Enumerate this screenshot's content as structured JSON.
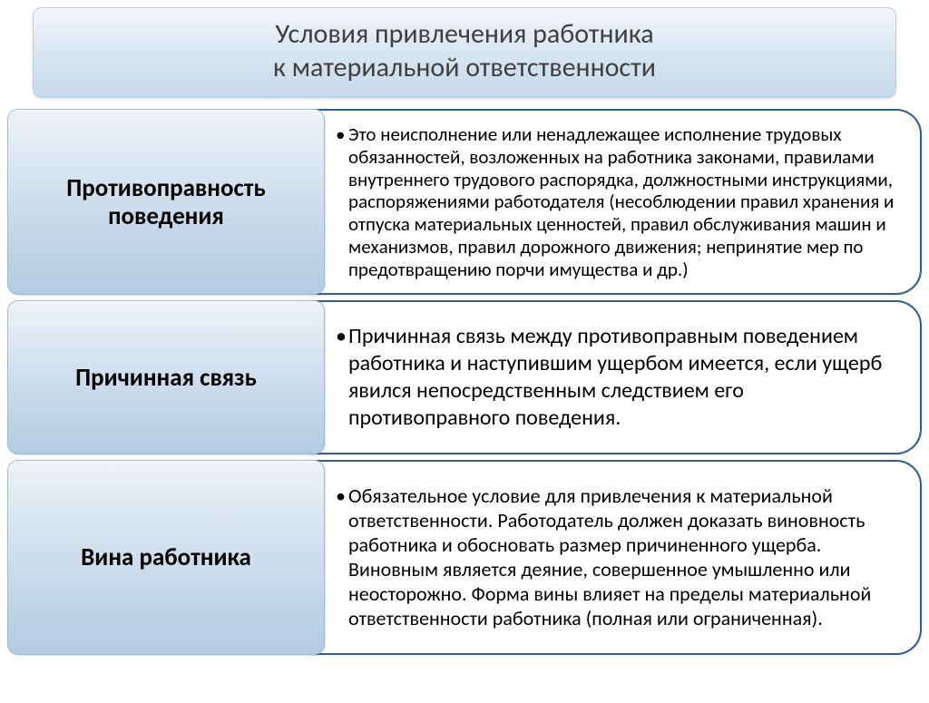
{
  "title": {
    "line1": "Условия привлечения работника",
    "line2": "к материальной ответственности"
  },
  "items": [
    {
      "label": "Противоправность поведения",
      "text": "Это неисполнение или ненадлежащее исполнение трудовых обязанностей, возложенных на работника законами, правилами внутреннего трудового распорядка, должностными инструкциями, распоряжениями работодателя (несоблюдении правил хранения и отпуска материальных ценностей, правил обслуживания машин и механизмов, правил дорожного движения; непринятие мер по предотвращению порчи имущества и др.)"
    },
    {
      "label": "Причинная связь",
      "text": "Причинная связь между противоправным поведением работника и наступившим ущербом имеется, если ущерб явился непосредственным следствием его противоправного поведения."
    },
    {
      "label": "Вина работника",
      "text": "Обязательное условие для привлечения к материальной ответственности. Работодатель должен доказать виновность работника и обосновать размер причиненного ущерба. Виновным является деяние, совершенное умышленно или неосторожно. Форма вины влияет на пределы материальной ответственности работника (полная или ограниченная)."
    }
  ],
  "style": {
    "type": "infographic",
    "layout": "smartart-vertical-list",
    "background_color": "#ffffff",
    "title_gradient": [
      "#f3f7fb",
      "#dbe7f2",
      "#c6d9ea"
    ],
    "title_border": "#b8cfe3",
    "title_fontsize": 30,
    "title_color": "#404040",
    "left_box_gradient": [
      "#eef3f8",
      "#d7e4f0",
      "#bcd2e6",
      "#b3cce3"
    ],
    "left_box_border": "#9db9d4",
    "left_box_width": 350,
    "left_box_radius": 12,
    "left_label_fontsize": 27,
    "left_label_weight": 700,
    "left_label_color": "#000000",
    "right_box_border": "#2f5e8c",
    "right_box_border_width": 2,
    "right_box_radius": 28,
    "right_text_color": "#000000",
    "row_fontsize": [
      21,
      24,
      22
    ],
    "row_min_height": [
      180,
      170,
      215
    ],
    "bullet": "•"
  }
}
